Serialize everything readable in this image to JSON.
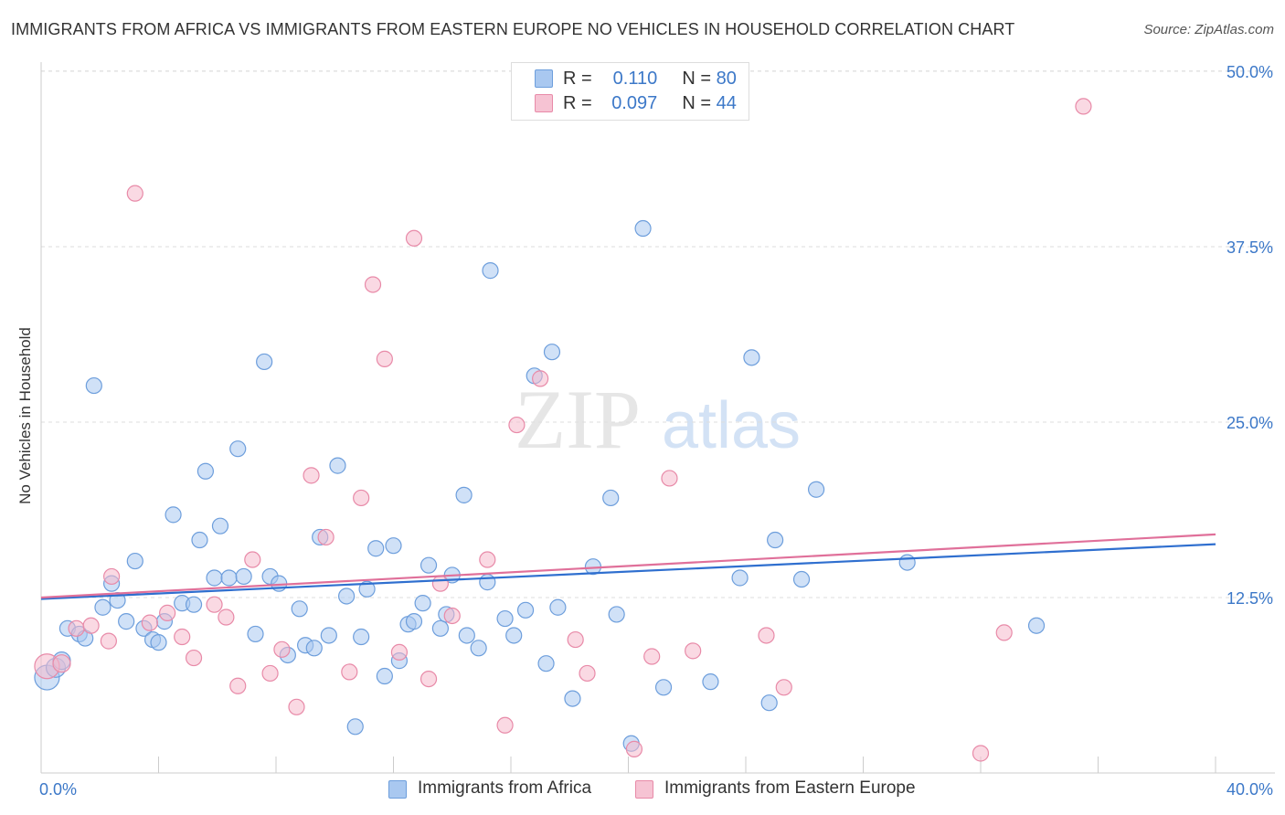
{
  "title": "IMMIGRANTS FROM AFRICA VS IMMIGRANTS FROM EASTERN EUROPE NO VEHICLES IN HOUSEHOLD CORRELATION CHART",
  "source": "Source: ZipAtlas.com",
  "watermark": {
    "zip": "ZIP",
    "atlas": "atlas"
  },
  "legend": {
    "r_label": "R =",
    "n_label": "N =",
    "rows": [
      {
        "r": "0.110",
        "n": "80"
      },
      {
        "r": "0.097",
        "n": "44"
      }
    ]
  },
  "colors": {
    "blue_fill": "#a9c8f0",
    "blue_stroke": "#6d9edc",
    "blue_line": "#2f6fcf",
    "pink_fill": "#f6b9cc",
    "pink_stroke": "#e88aa8",
    "pink_line": "#e0709a",
    "tick_label": "#3c78c8"
  },
  "chart_data": {
    "type": "scatter",
    "title": "IMMIGRANTS FROM AFRICA VS IMMIGRANTS FROM EASTERN EUROPE NO VEHICLES IN HOUSEHOLD CORRELATION CHART",
    "xlabel": "",
    "ylabel": "No Vehicles in Household",
    "xlim": [
      0,
      40
    ],
    "ylim": [
      0,
      50
    ],
    "x_tick_labels": [
      "0.0%",
      "40.0%"
    ],
    "y_ticks": [
      12.5,
      25.0,
      37.5,
      50.0
    ],
    "y_tick_labels": [
      "12.5%",
      "25.0%",
      "37.5%",
      "50.0%"
    ],
    "series": [
      {
        "name": "Immigrants from Africa",
        "color": "blue",
        "trend": {
          "x": [
            0,
            40
          ],
          "y": [
            12.4,
            16.3
          ]
        },
        "points": [
          [
            0.2,
            6.8,
            12
          ],
          [
            0.5,
            7.5,
            9
          ],
          [
            0.7,
            8.0,
            8
          ],
          [
            0.9,
            10.3,
            7
          ],
          [
            1.3,
            9.9,
            7
          ],
          [
            1.5,
            9.6,
            7
          ],
          [
            1.8,
            27.6,
            7
          ],
          [
            2.1,
            11.8,
            7
          ],
          [
            2.4,
            13.5,
            7
          ],
          [
            2.6,
            12.3,
            7
          ],
          [
            2.9,
            10.8,
            7
          ],
          [
            3.2,
            15.1,
            7
          ],
          [
            3.5,
            10.3,
            7
          ],
          [
            3.8,
            9.5,
            7
          ],
          [
            4.0,
            9.3,
            7
          ],
          [
            4.2,
            10.8,
            7
          ],
          [
            4.5,
            18.4,
            7
          ],
          [
            4.8,
            12.1,
            7
          ],
          [
            5.2,
            12.0,
            7
          ],
          [
            5.4,
            16.6,
            7
          ],
          [
            5.6,
            21.5,
            7
          ],
          [
            5.9,
            13.9,
            7
          ],
          [
            6.1,
            17.6,
            7
          ],
          [
            6.4,
            13.9,
            7
          ],
          [
            6.7,
            23.1,
            7
          ],
          [
            6.9,
            14.0,
            7
          ],
          [
            7.3,
            9.9,
            7
          ],
          [
            7.6,
            29.3,
            7
          ],
          [
            7.8,
            14.0,
            7
          ],
          [
            8.1,
            13.5,
            7
          ],
          [
            8.4,
            8.4,
            7
          ],
          [
            8.8,
            11.7,
            7
          ],
          [
            9.0,
            9.1,
            7
          ],
          [
            9.3,
            8.9,
            7
          ],
          [
            9.5,
            16.8,
            7
          ],
          [
            9.8,
            9.8,
            7
          ],
          [
            10.1,
            21.9,
            7
          ],
          [
            10.4,
            12.6,
            7
          ],
          [
            10.7,
            3.3,
            7
          ],
          [
            10.9,
            9.7,
            7
          ],
          [
            11.1,
            13.1,
            7
          ],
          [
            11.4,
            16.0,
            7
          ],
          [
            11.7,
            6.9,
            7
          ],
          [
            12.0,
            16.2,
            7
          ],
          [
            12.2,
            8.0,
            7
          ],
          [
            12.5,
            10.6,
            7
          ],
          [
            12.7,
            10.8,
            7
          ],
          [
            13.0,
            12.1,
            7
          ],
          [
            13.2,
            14.8,
            7
          ],
          [
            13.6,
            10.3,
            7
          ],
          [
            13.8,
            11.3,
            7
          ],
          [
            14.0,
            14.1,
            7
          ],
          [
            14.4,
            19.8,
            7
          ],
          [
            14.5,
            9.8,
            7
          ],
          [
            14.9,
            8.9,
            7
          ],
          [
            15.2,
            13.6,
            7
          ],
          [
            15.3,
            35.8,
            7
          ],
          [
            15.8,
            11.0,
            7
          ],
          [
            16.1,
            9.8,
            7
          ],
          [
            16.5,
            11.6,
            7
          ],
          [
            16.8,
            28.3,
            7
          ],
          [
            17.2,
            7.8,
            7
          ],
          [
            17.4,
            30.0,
            7
          ],
          [
            17.6,
            11.8,
            7
          ],
          [
            18.1,
            5.3,
            7
          ],
          [
            18.8,
            14.7,
            7
          ],
          [
            19.4,
            19.6,
            7
          ],
          [
            19.6,
            11.3,
            7
          ],
          [
            20.1,
            2.1,
            7
          ],
          [
            20.5,
            38.8,
            7
          ],
          [
            21.2,
            6.1,
            7
          ],
          [
            22.8,
            6.5,
            7
          ],
          [
            23.8,
            13.9,
            7
          ],
          [
            24.2,
            29.6,
            7
          ],
          [
            24.8,
            5.0,
            7
          ],
          [
            25.0,
            16.6,
            7
          ],
          [
            25.9,
            13.8,
            7
          ],
          [
            26.4,
            20.2,
            7
          ],
          [
            29.5,
            15.0,
            7
          ],
          [
            33.9,
            10.5,
            7
          ]
        ]
      },
      {
        "name": "Immigrants from Eastern Europe",
        "color": "pink",
        "trend": {
          "x": [
            0,
            40
          ],
          "y": [
            12.5,
            17.0
          ]
        },
        "points": [
          [
            0.2,
            7.6,
            12
          ],
          [
            0.7,
            7.8,
            8
          ],
          [
            1.2,
            10.3,
            7
          ],
          [
            1.7,
            10.5,
            7
          ],
          [
            2.3,
            9.4,
            7
          ],
          [
            2.4,
            14.0,
            7
          ],
          [
            3.2,
            41.3,
            7
          ],
          [
            3.7,
            10.7,
            7
          ],
          [
            4.3,
            11.4,
            7
          ],
          [
            4.8,
            9.7,
            7
          ],
          [
            5.2,
            8.2,
            7
          ],
          [
            5.9,
            12.0,
            7
          ],
          [
            6.3,
            11.1,
            7
          ],
          [
            6.7,
            6.2,
            7
          ],
          [
            7.2,
            15.2,
            7
          ],
          [
            7.8,
            7.1,
            7
          ],
          [
            8.2,
            8.8,
            7
          ],
          [
            8.7,
            4.7,
            7
          ],
          [
            9.2,
            21.2,
            7
          ],
          [
            9.7,
            16.8,
            7
          ],
          [
            10.5,
            7.2,
            7
          ],
          [
            10.9,
            19.6,
            7
          ],
          [
            11.3,
            34.8,
            7
          ],
          [
            11.7,
            29.5,
            7
          ],
          [
            12.2,
            8.6,
            7
          ],
          [
            12.7,
            38.1,
            7
          ],
          [
            13.2,
            6.7,
            7
          ],
          [
            13.6,
            13.5,
            7
          ],
          [
            14.0,
            11.2,
            7
          ],
          [
            15.2,
            15.2,
            7
          ],
          [
            15.8,
            3.4,
            7
          ],
          [
            16.2,
            24.8,
            7
          ],
          [
            17.0,
            28.1,
            7
          ],
          [
            18.2,
            9.5,
            7
          ],
          [
            18.6,
            7.1,
            7
          ],
          [
            20.2,
            1.7,
            7
          ],
          [
            20.8,
            8.3,
            7
          ],
          [
            21.4,
            21.0,
            7
          ],
          [
            22.2,
            8.7,
            7
          ],
          [
            24.7,
            9.8,
            7
          ],
          [
            25.3,
            6.1,
            7
          ],
          [
            32.0,
            1.4,
            7
          ],
          [
            32.8,
            10.0,
            7
          ],
          [
            35.5,
            47.5,
            7
          ]
        ]
      }
    ]
  },
  "bottom_legend": [
    "Immigrants from Africa",
    "Immigrants from Eastern Europe"
  ]
}
